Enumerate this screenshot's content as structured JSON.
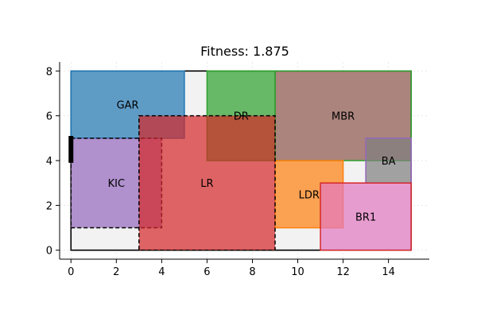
{
  "chart_data": {
    "type": "floorplan",
    "title": "Fitness: 1.875",
    "xlim": [
      -0.5,
      15.8
    ],
    "ylim": [
      -0.4,
      8.4
    ],
    "x_ticks": [
      0,
      2,
      4,
      6,
      8,
      10,
      12,
      14
    ],
    "y_ticks": [
      0,
      2,
      4,
      6,
      8
    ],
    "grid": true,
    "boundary": [
      [
        0,
        0
      ],
      [
        15,
        0
      ],
      [
        15,
        8
      ],
      [
        0,
        8
      ]
    ],
    "boundary_color": "#f2f2f2",
    "entrance": {
      "x": 0,
      "y0": 3.9,
      "y1": 5.1
    },
    "rooms": [
      {
        "name": "GAR",
        "x0": 0,
        "y0": 5,
        "x1": 5,
        "y1": 8,
        "fill": "#1f77b4",
        "edge": "#1f77b4",
        "dashed": false,
        "label_x": 2.5,
        "label_y": 6.5
      },
      {
        "name": "DR",
        "x0": 6,
        "y0": 4,
        "x1": 9,
        "y1": 8,
        "fill": "#2ca02c",
        "edge": "#2ca02c",
        "dashed": false,
        "label_x": 7.5,
        "label_y": 6.0
      },
      {
        "name": "MBR",
        "x0": 9,
        "y0": 4,
        "x1": 15,
        "y1": 8,
        "fill": "#8c564b",
        "edge": "#2ca02c",
        "dashed": false,
        "label_x": 12.0,
        "label_y": 6.0
      },
      {
        "name": "LDR",
        "x0": 9,
        "y0": 1,
        "x1": 12,
        "y1": 4,
        "fill": "#ff7f0e",
        "edge": "#ff7f0e",
        "dashed": false,
        "label_x": 10.5,
        "label_y": 2.5
      },
      {
        "name": "BA",
        "x0": 13,
        "y0": 3,
        "x1": 15,
        "y1": 5,
        "fill": "#7f7f7f",
        "edge": "#9467bd",
        "dashed": false,
        "label_x": 14.0,
        "label_y": 4.0
      },
      {
        "name": "BR1",
        "x0": 11,
        "y0": 0,
        "x1": 15,
        "y1": 3,
        "fill": "#e377c2",
        "edge": "#d62728",
        "dashed": false,
        "label_x": 13.0,
        "label_y": 1.5
      },
      {
        "name": "KIC",
        "x0": 0,
        "y0": 1,
        "x1": 4,
        "y1": 5,
        "fill": "#9467bd",
        "edge": "#000000",
        "dashed": true,
        "label_x": 2.0,
        "label_y": 3.0
      },
      {
        "name": "LR",
        "x0": 3,
        "y0": 0,
        "x1": 9,
        "y1": 6,
        "fill": "#d62728",
        "edge": "#000000",
        "dashed": true,
        "label_x": 6.0,
        "label_y": 3.0
      }
    ]
  }
}
